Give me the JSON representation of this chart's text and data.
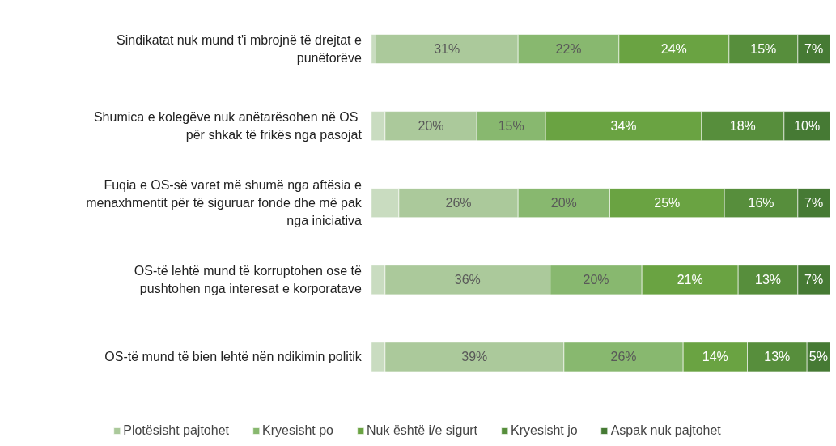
{
  "chart_data": {
    "type": "bar",
    "orientation": "horizontal",
    "stacked": true,
    "tick_labels": "y",
    "legend": "bottom",
    "grid": false,
    "categories": [
      "Sindikatat nuk mund t'i mbrojnë të drejtat e punëtorëve",
      "Shumica e kolegëve nuk  anëtarësohen në OS për shkak të frikës nga pasojat",
      "Fuqia e OS-së varet më shumë nga aftësia e menaxhmentit për të siguruar fonde dhe më pak nga iniciativa",
      "OS-të lehtë mund të korruptohen ose të pushtohen nga interesat e korporatave",
      "OS-të mund të bien lehtë nën ndikimin politik"
    ],
    "series": [
      {
        "color": "#c9dcc0",
        "values": [
          1,
          3,
          6,
          3,
          3
        ],
        "value_labels": [
          null,
          null,
          null,
          null,
          null
        ]
      },
      {
        "name": "Plotësisht pajtohet",
        "color": "#abc99b",
        "values": [
          31,
          20,
          26,
          36,
          39
        ],
        "value_labels": [
          "31%",
          "20%",
          "26%",
          "36%",
          "39%"
        ]
      },
      {
        "name": "Kryesisht po",
        "color": "#88b86f",
        "values": [
          22,
          15,
          20,
          20,
          26
        ],
        "value_labels": [
          "22%",
          "15%",
          "20%",
          "20%",
          "26%"
        ]
      },
      {
        "name": "Nuk është i/e sigurt",
        "color": "#6aa342",
        "values": [
          24,
          34,
          25,
          21,
          14
        ],
        "value_labels": [
          "24%",
          "34%",
          "25%",
          "21%",
          "14%"
        ]
      },
      {
        "name": "Kryesisht jo",
        "color": "#578e3c",
        "values": [
          15,
          18,
          16,
          13,
          13
        ],
        "value_labels": [
          "15%",
          "18%",
          "16%",
          "13%",
          "13%"
        ]
      },
      {
        "name": "Aspak nuk pajtohet",
        "color": "#467a34",
        "values": [
          7,
          10,
          7,
          7,
          5
        ],
        "value_labels": [
          "7%",
          "10%",
          "7%",
          "7%",
          "5%"
        ]
      }
    ]
  }
}
